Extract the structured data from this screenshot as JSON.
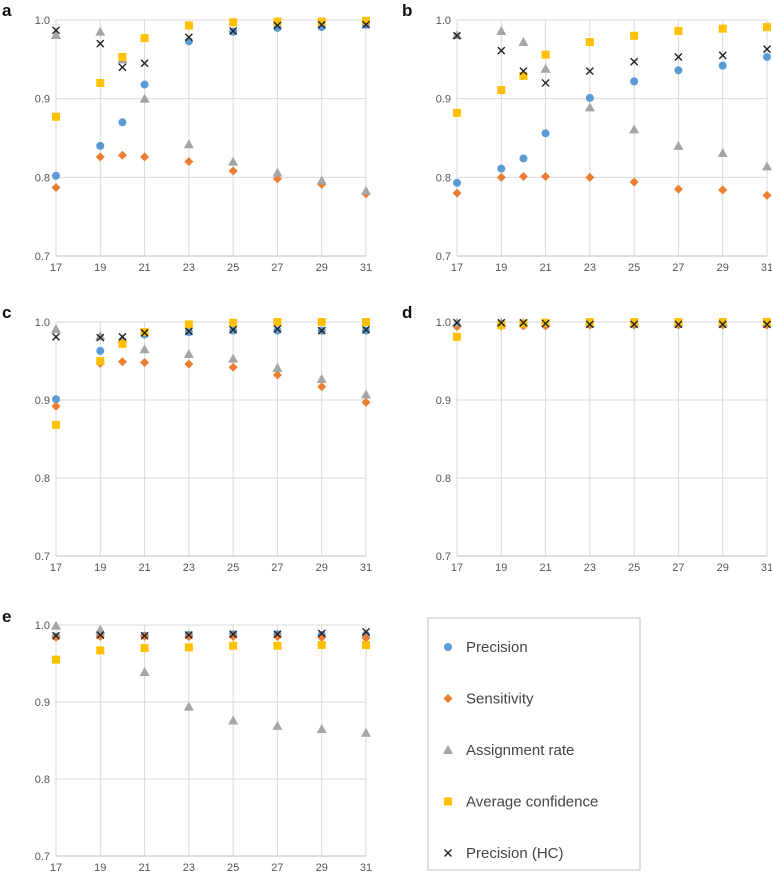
{
  "chart_data": [
    {
      "panel": "a",
      "type": "scatter",
      "x": [
        17,
        19,
        20,
        21,
        23,
        25,
        27,
        29,
        31
      ],
      "xticks": [
        17,
        19,
        21,
        23,
        25,
        27,
        29,
        31
      ],
      "ylim": [
        0.7,
        1.0
      ],
      "yticks": [
        "0.7",
        "0.8",
        "0.9",
        "1.0"
      ],
      "series": [
        {
          "key": "precision",
          "values": [
            0.802,
            0.84,
            0.87,
            0.918,
            0.973,
            0.985,
            0.99,
            0.991,
            0.994
          ]
        },
        {
          "key": "sensitivity",
          "values": [
            0.787,
            0.826,
            0.828,
            0.826,
            0.82,
            0.808,
            0.798,
            0.791,
            0.779
          ]
        },
        {
          "key": "assignment",
          "values": [
            0.981,
            0.985,
            0.95,
            0.9,
            0.842,
            0.82,
            0.806,
            0.796,
            0.783
          ]
        },
        {
          "key": "confidence",
          "values": [
            0.877,
            0.92,
            0.953,
            0.977,
            0.993,
            0.997,
            0.998,
            0.998,
            0.999
          ]
        },
        {
          "key": "precision_hc",
          "values": [
            0.987,
            0.97,
            0.94,
            0.945,
            0.978,
            0.986,
            0.993,
            0.994,
            0.994
          ]
        }
      ]
    },
    {
      "panel": "b",
      "type": "scatter",
      "x": [
        17,
        19,
        20,
        21,
        23,
        25,
        27,
        29,
        31
      ],
      "xticks": [
        17,
        19,
        21,
        23,
        25,
        27,
        29,
        31
      ],
      "ylim": [
        0.7,
        1.0
      ],
      "yticks": [
        "0.7",
        "0.8",
        "0.9",
        "1.0"
      ],
      "series": [
        {
          "key": "precision",
          "values": [
            0.793,
            0.811,
            0.824,
            0.856,
            0.901,
            0.922,
            0.936,
            0.942,
            0.953
          ]
        },
        {
          "key": "sensitivity",
          "values": [
            0.78,
            0.8,
            0.801,
            0.801,
            0.8,
            0.794,
            0.785,
            0.784,
            0.777
          ]
        },
        {
          "key": "assignment",
          "values": [
            0.981,
            0.986,
            0.972,
            0.938,
            0.889,
            0.861,
            0.84,
            0.831,
            0.814
          ]
        },
        {
          "key": "confidence",
          "values": [
            0.882,
            0.911,
            0.929,
            0.956,
            0.972,
            0.98,
            0.986,
            0.989,
            0.991
          ]
        },
        {
          "key": "precision_hc",
          "values": [
            0.98,
            0.961,
            0.935,
            0.92,
            0.935,
            0.947,
            0.953,
            0.955,
            0.963
          ]
        }
      ]
    },
    {
      "panel": "c",
      "type": "scatter",
      "x": [
        17,
        19,
        20,
        21,
        23,
        25,
        27,
        29,
        31
      ],
      "xticks": [
        17,
        19,
        21,
        23,
        25,
        27,
        29,
        31
      ],
      "ylim": [
        0.7,
        1.0
      ],
      "yticks": [
        "0.7",
        "0.8",
        "0.9",
        "1.0"
      ],
      "series": [
        {
          "key": "precision",
          "values": [
            0.901,
            0.963,
            0.976,
            0.984,
            0.987,
            0.989,
            0.989,
            0.989,
            0.989
          ]
        },
        {
          "key": "sensitivity",
          "values": [
            0.892,
            0.947,
            0.949,
            0.948,
            0.946,
            0.942,
            0.932,
            0.917,
            0.897
          ]
        },
        {
          "key": "assignment",
          "values": [
            0.991,
            0.982,
            0.978,
            0.965,
            0.959,
            0.953,
            0.941,
            0.927,
            0.907
          ]
        },
        {
          "key": "confidence",
          "values": [
            0.868,
            0.95,
            0.972,
            0.987,
            0.997,
            0.999,
            1.0,
            1.0,
            1.0
          ]
        },
        {
          "key": "precision_hc",
          "values": [
            0.981,
            0.98,
            0.981,
            0.986,
            0.988,
            0.99,
            0.991,
            0.989,
            0.99
          ]
        }
      ]
    },
    {
      "panel": "d",
      "type": "scatter",
      "x": [
        17,
        19,
        20,
        21,
        23,
        25,
        27,
        29,
        31
      ],
      "xticks": [
        17,
        19,
        21,
        23,
        25,
        27,
        29,
        31
      ],
      "ylim": [
        0.7,
        1.0
      ],
      "yticks": [
        "0.7",
        "0.8",
        "0.9",
        "1.0"
      ],
      "series": [
        {
          "key": "precision",
          "values": [
            0.995,
            0.996,
            0.996,
            0.996,
            0.997,
            0.997,
            0.997,
            0.997,
            0.997
          ]
        },
        {
          "key": "sensitivity",
          "values": [
            0.994,
            0.995,
            0.995,
            0.995,
            0.996,
            0.996,
            0.996,
            0.996,
            0.996
          ]
        },
        {
          "key": "assignment",
          "values": [
            0.999,
            0.999,
            0.999,
            0.999,
            0.999,
            0.999,
            0.999,
            0.999,
            0.999
          ]
        },
        {
          "key": "confidence",
          "values": [
            0.981,
            0.996,
            0.998,
            0.999,
            1.0,
            1.0,
            1.0,
            1.0,
            1.0
          ]
        },
        {
          "key": "precision_hc",
          "values": [
            0.999,
            0.999,
            0.999,
            0.998,
            0.997,
            0.997,
            0.997,
            0.997,
            0.997
          ]
        }
      ]
    },
    {
      "panel": "e",
      "type": "scatter",
      "x": [
        17,
        19,
        21,
        23,
        25,
        27,
        29,
        31
      ],
      "xticks": [
        17,
        19,
        21,
        23,
        25,
        27,
        29,
        31
      ],
      "ylim": [
        0.7,
        1.0
      ],
      "yticks": [
        "0.7",
        "0.8",
        "0.9",
        "1.0"
      ],
      "series": [
        {
          "key": "precision",
          "values": [
            0.985,
            0.987,
            0.986,
            0.987,
            0.988,
            0.988,
            0.987,
            0.987
          ]
        },
        {
          "key": "sensitivity",
          "values": [
            0.984,
            0.985,
            0.985,
            0.985,
            0.985,
            0.985,
            0.984,
            0.983
          ]
        },
        {
          "key": "assignment",
          "values": [
            0.999,
            0.994,
            0.939,
            0.894,
            0.876,
            0.869,
            0.865,
            0.86
          ]
        },
        {
          "key": "confidence",
          "values": [
            0.955,
            0.967,
            0.97,
            0.971,
            0.973,
            0.973,
            0.974,
            0.974
          ]
        },
        {
          "key": "precision_hc",
          "values": [
            0.986,
            0.987,
            0.986,
            0.987,
            0.988,
            0.988,
            0.989,
            0.991
          ]
        }
      ]
    }
  ],
  "legend": [
    {
      "key": "precision",
      "label": "Precision",
      "color": "#5b9bd5",
      "marker": "circle"
    },
    {
      "key": "sensitivity",
      "label": "Sensitivity",
      "color": "#ed7d31",
      "marker": "diamond"
    },
    {
      "key": "assignment",
      "label": "Assignment rate",
      "color": "#a5a5a5",
      "marker": "triangle"
    },
    {
      "key": "confidence",
      "label": "Average confidence",
      "color": "#ffc000",
      "marker": "square"
    },
    {
      "key": "precision_hc",
      "label": "Precision (HC)",
      "color": "#222222",
      "marker": "x"
    }
  ]
}
